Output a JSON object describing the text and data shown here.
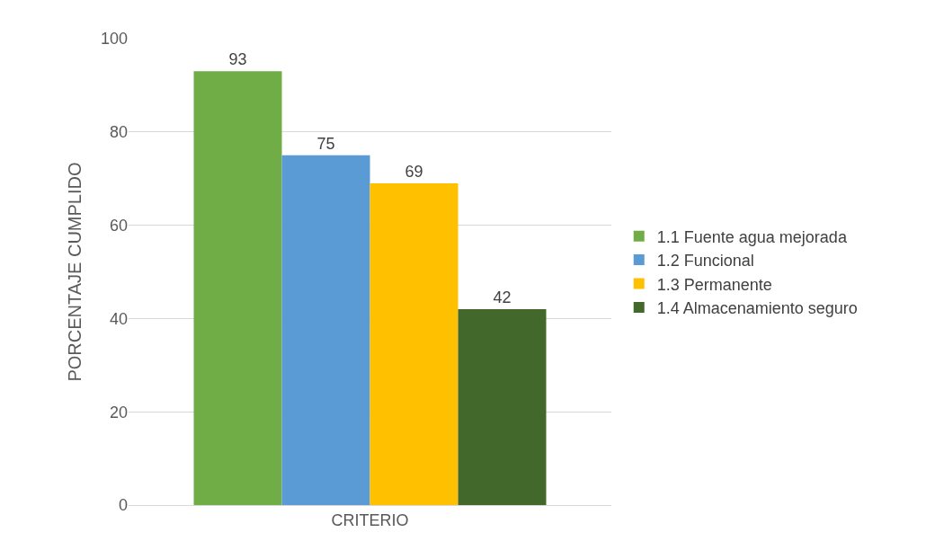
{
  "chart_data": {
    "type": "bar",
    "ylabel": "PORCENTAJE CUMPLIDO",
    "categories": [
      "CRITERIO"
    ],
    "series": [
      {
        "name": "1.1 Fuente agua mejorada",
        "color": "#70ad47",
        "values": [
          93
        ]
      },
      {
        "name": "1.2 Funcional",
        "color": "#5b9bd5",
        "values": [
          75
        ]
      },
      {
        "name": "1.3 Permanente",
        "color": "#ffc000",
        "values": [
          69
        ]
      },
      {
        "name": "1.4 Almacenamiento seguro",
        "color": "#43682b",
        "values": [
          42
        ]
      }
    ],
    "ylim": [
      0,
      100
    ],
    "yticks": [
      0,
      20,
      40,
      60,
      80,
      100
    ],
    "grid": "y",
    "legend": "right",
    "data_labels": true
  }
}
